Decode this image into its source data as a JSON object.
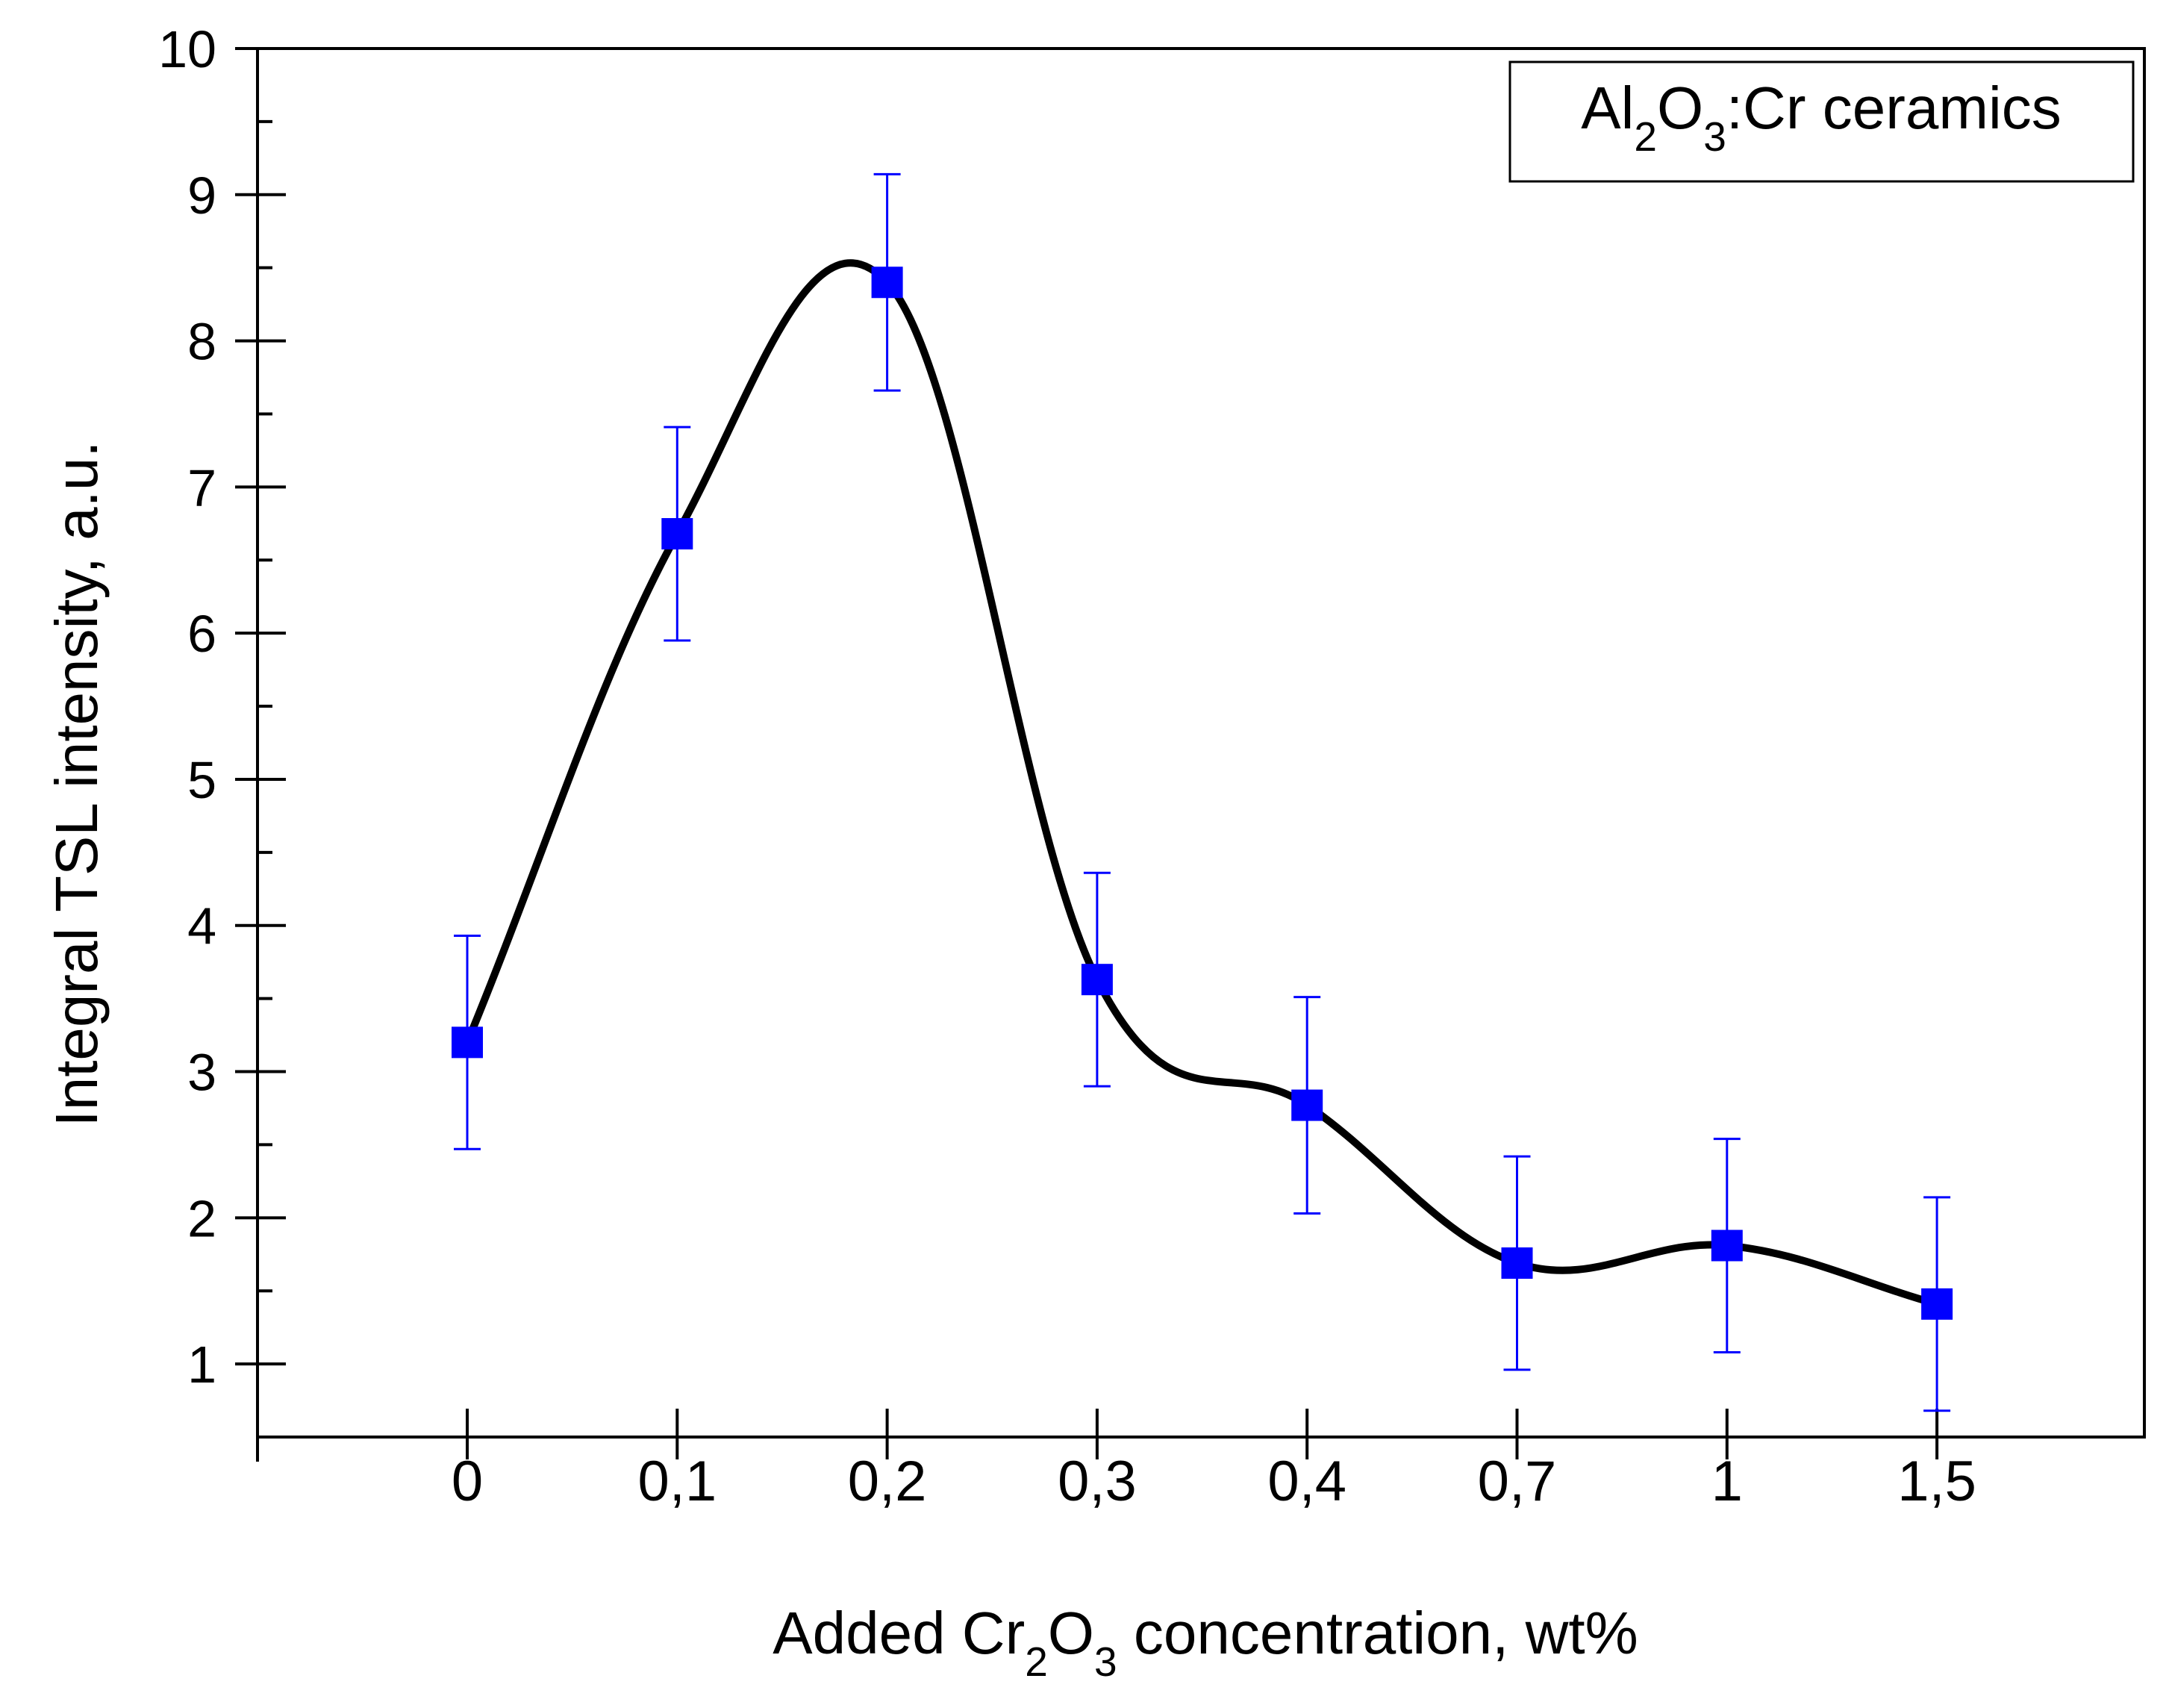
{
  "chart_data": {
    "type": "scatter",
    "x_is_categorical": true,
    "categories": [
      "0",
      "0,1",
      "0,2",
      "0,3",
      "0,4",
      "0,7",
      "1",
      "1,5"
    ],
    "series": [
      {
        "name": "Al2O3:Cr ceramics",
        "values": [
          3.2,
          6.68,
          8.4,
          3.63,
          2.77,
          1.69,
          1.81,
          1.41
        ],
        "error": [
          0.73,
          0.73,
          0.74,
          0.73,
          0.74,
          0.73,
          0.73,
          0.73
        ],
        "marker": "square",
        "color": "#0000ff"
      }
    ],
    "fit_curve": {
      "description": "smooth line through points",
      "color": "#000000"
    },
    "ylim": [
      0.5,
      10
    ],
    "yticks": [
      1,
      2,
      3,
      4,
      5,
      6,
      7,
      8,
      9,
      10
    ],
    "yminor_step": 0.5,
    "ylabel": "Integral TSL intensity, a.u.",
    "xlabel_parts": [
      {
        "text": "Added Cr",
        "sub": false
      },
      {
        "text": "2",
        "sub": true
      },
      {
        "text": "O",
        "sub": false
      },
      {
        "text": "3",
        "sub": true
      },
      {
        "text": " concentration, wt%",
        "sub": false
      }
    ],
    "legend": {
      "position": "top-right",
      "parts": [
        {
          "text": "Al",
          "sub": false
        },
        {
          "text": "2",
          "sub": true
        },
        {
          "text": "O",
          "sub": false
        },
        {
          "text": "3",
          "sub": true
        },
        {
          "text": ":Cr ceramics",
          "sub": false
        }
      ]
    }
  }
}
